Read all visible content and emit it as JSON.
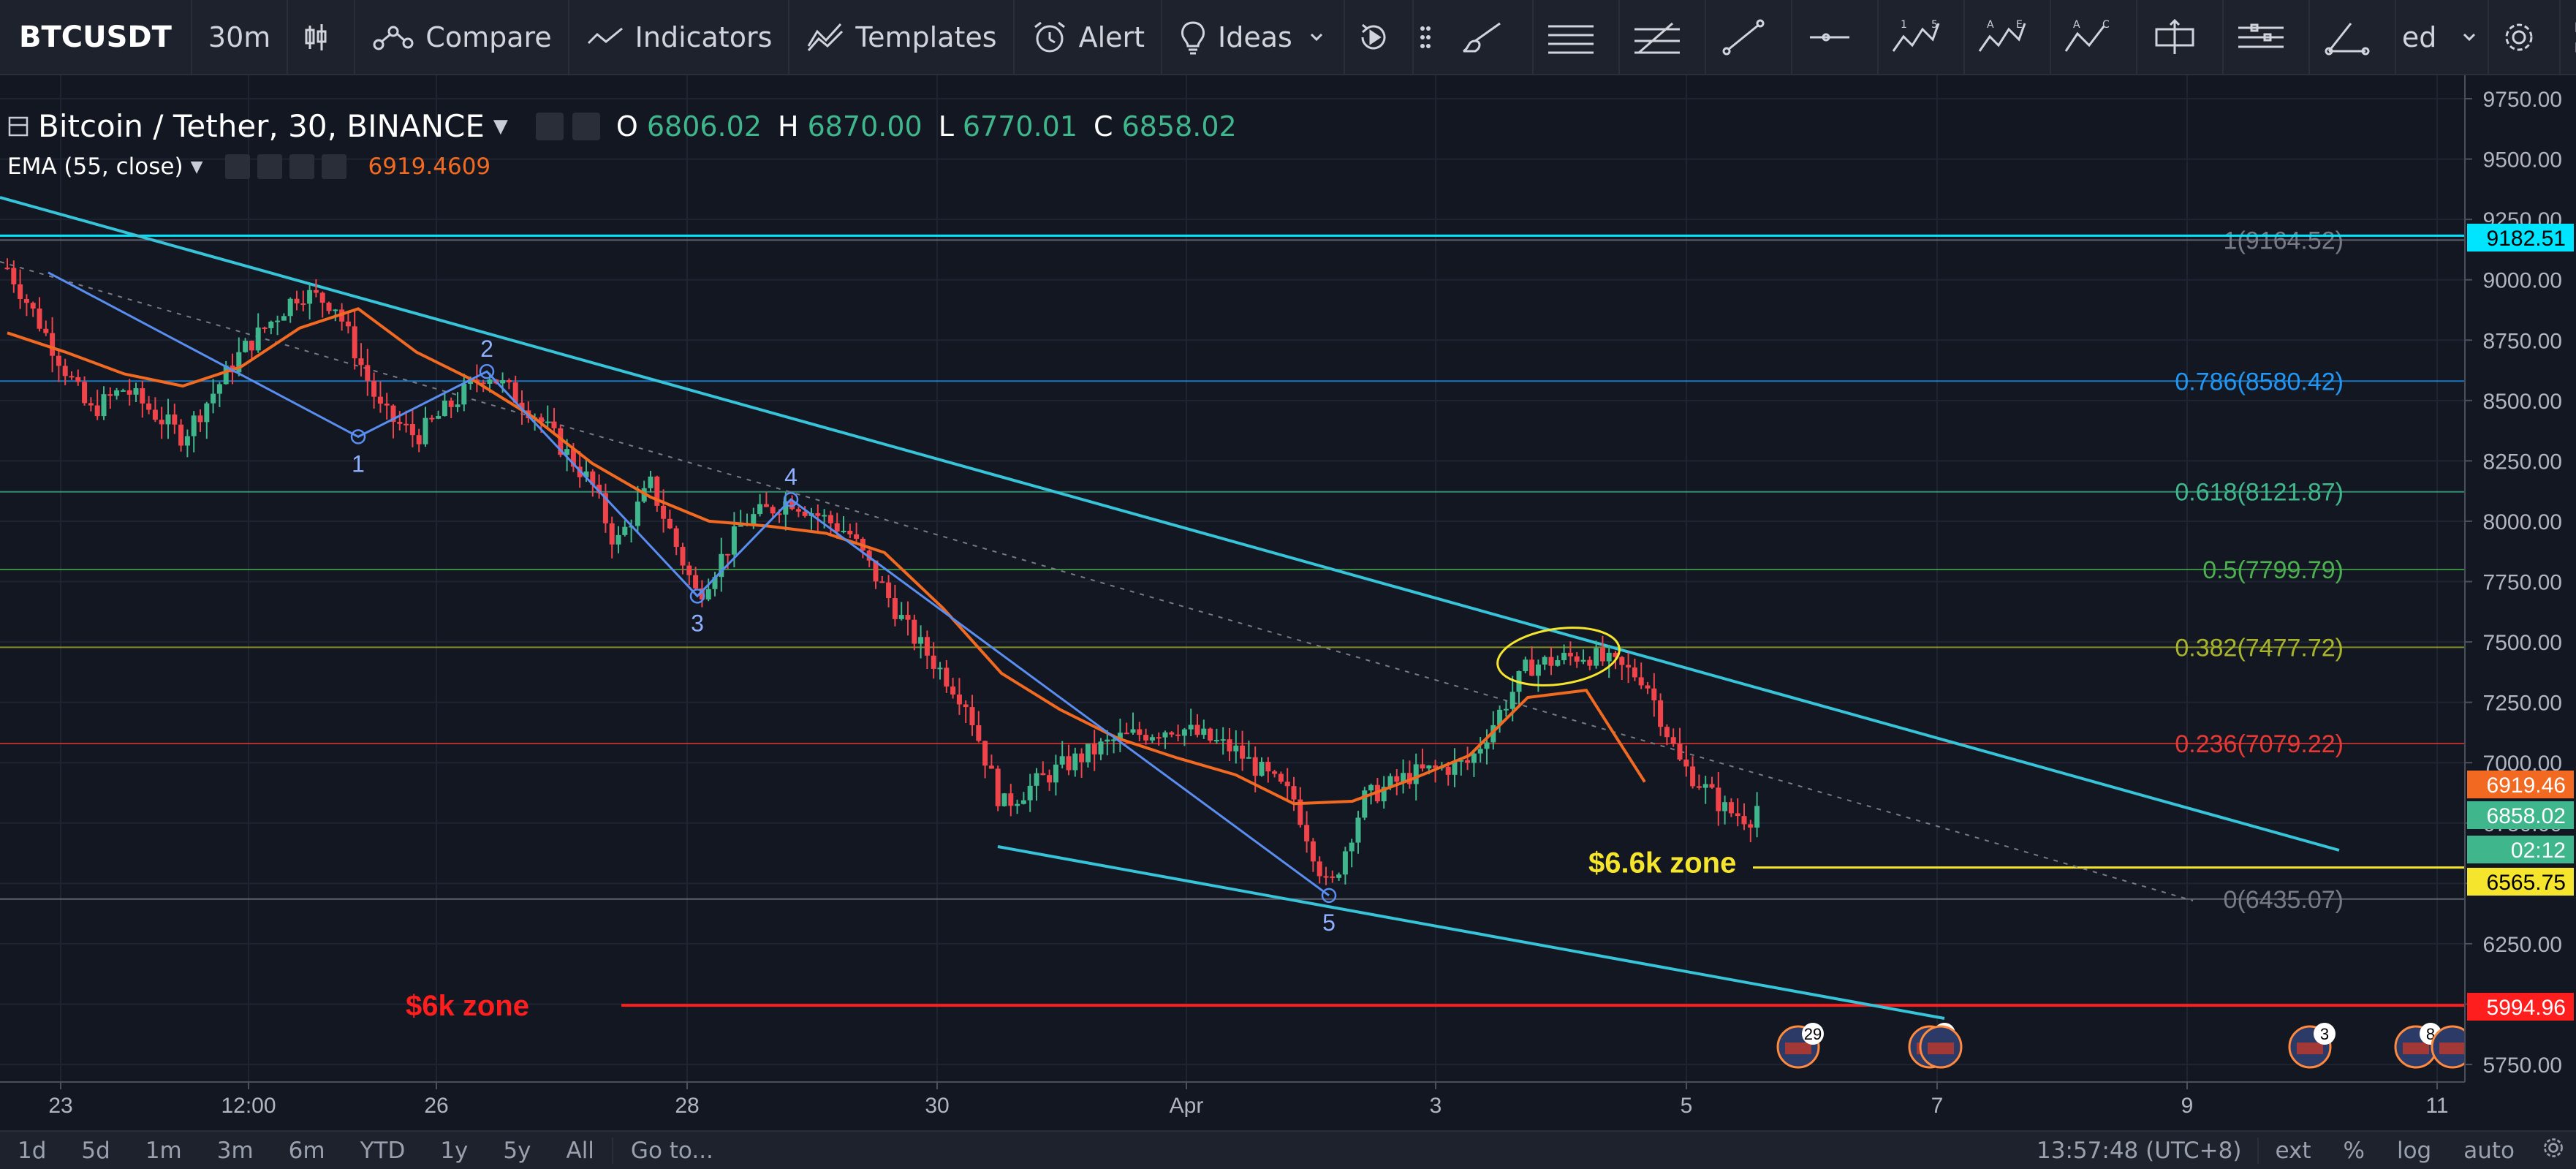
{
  "toolbar": {
    "symbol": "BTCUSDT",
    "interval": "30m",
    "compare": "Compare",
    "indicators": "Indicators",
    "templates": "Templates",
    "alert": "Alert",
    "ideas": "Ideas",
    "cut_label": "ed"
  },
  "legend": {
    "title": "Bitcoin / Tether, 30, BINANCE",
    "o_label": "O",
    "o": "6806.02",
    "h_label": "H",
    "h": "6870.00",
    "l_label": "L",
    "l": "6770.01",
    "c_label": "C",
    "c": "6858.02"
  },
  "indicator": {
    "name": "EMA (55, close)",
    "value": "6919.4609"
  },
  "colors": {
    "background": "#131722",
    "ema": "#f26a21",
    "channel": "#37c3d8",
    "wave": "#5a8df0",
    "up": "#3fb68b",
    "down": "#f0444a",
    "yellow": "#f5e52c",
    "red_zone": "#ff1e1e"
  },
  "price_axis": {
    "ticks": [
      "9750.00",
      "9500.00",
      "9250.00",
      "9000.00",
      "8750.00",
      "8500.00",
      "8250.00",
      "8000.00",
      "7750.00",
      "7500.00",
      "7250.00",
      "7000.00",
      "6750.00",
      "6500.00",
      "6250.00",
      "6000.00",
      "5750.00"
    ],
    "tags": [
      {
        "text": "9182.51",
        "bg": "#00e5ff",
        "fg": "#000000"
      },
      {
        "text": "6919.46",
        "bg": "#f26a21",
        "fg": "#ffffff"
      },
      {
        "text": "6858.02",
        "bg": "#3fb68b",
        "fg": "#ffffff"
      },
      {
        "text": "02:12",
        "bg": "#3fb68b",
        "fg": "#ffffff"
      },
      {
        "text": "6565.75",
        "bg": "#f5e52c",
        "fg": "#000000"
      },
      {
        "text": "5994.96",
        "bg": "#ff1e1e",
        "fg": "#ffffff"
      }
    ]
  },
  "time_axis": {
    "ticks": [
      "23",
      "12:00",
      "26",
      "28",
      "30",
      "Apr",
      "3",
      "5",
      "7",
      "9",
      "11"
    ]
  },
  "chart_data": {
    "type": "candlestick",
    "symbol": "Bitcoin / Tether",
    "interval": "30",
    "exchange": "BINANCE",
    "ylim": [
      5700,
      9800
    ],
    "series": [
      {
        "name": "EMA (55, close)",
        "x": [
          22.0,
          22.5,
          23.0,
          23.5,
          24.0,
          24.5,
          25.0,
          25.5,
          26.0,
          26.5,
          27.0,
          27.5,
          28.0,
          28.5,
          29.0,
          29.5,
          30.0,
          30.5,
          31.0,
          31.5,
          32.0,
          32.5,
          33.0,
          33.5,
          34.0,
          34.5,
          35.0,
          35.5,
          36.0
        ],
        "values": [
          8780,
          8700,
          8610,
          8560,
          8640,
          8800,
          8880,
          8700,
          8580,
          8430,
          8240,
          8100,
          8000,
          7980,
          7950,
          7870,
          7640,
          7370,
          7220,
          7100,
          7020,
          6950,
          6830,
          6840,
          6930,
          7030,
          7270,
          7300,
          6920
        ]
      }
    ],
    "ohlc_sample": [
      {
        "x": 22.0,
        "close": 9050
      },
      {
        "x": 22.3,
        "close": 8800
      },
      {
        "x": 22.7,
        "close": 8450
      },
      {
        "x": 23.0,
        "close": 8550
      },
      {
        "x": 23.5,
        "close": 8350
      },
      {
        "x": 24.0,
        "close": 8700
      },
      {
        "x": 24.5,
        "close": 8950
      },
      {
        "x": 24.8,
        "close": 8900
      },
      {
        "x": 25.2,
        "close": 8450
      },
      {
        "x": 25.5,
        "close": 8350
      },
      {
        "x": 26.1,
        "close": 8620
      },
      {
        "x": 26.5,
        "close": 8450
      },
      {
        "x": 27.0,
        "close": 8150
      },
      {
        "x": 27.2,
        "close": 7900
      },
      {
        "x": 27.5,
        "close": 8150
      },
      {
        "x": 27.9,
        "close": 7690
      },
      {
        "x": 28.3,
        "close": 8000
      },
      {
        "x": 28.7,
        "close": 8090
      },
      {
        "x": 29.2,
        "close": 7950
      },
      {
        "x": 29.7,
        "close": 7550
      },
      {
        "x": 30.2,
        "close": 7250
      },
      {
        "x": 30.5,
        "close": 6820
      },
      {
        "x": 31.0,
        "close": 6980
      },
      {
        "x": 31.5,
        "close": 7100
      },
      {
        "x": 32.0,
        "close": 7150
      },
      {
        "x": 32.5,
        "close": 7050
      },
      {
        "x": 33.0,
        "close": 6850
      },
      {
        "x": 33.3,
        "close": 6460
      },
      {
        "x": 33.6,
        "close": 6850
      },
      {
        "x": 34.0,
        "close": 6950
      },
      {
        "x": 34.5,
        "close": 7000
      },
      {
        "x": 35.0,
        "close": 7400
      },
      {
        "x": 35.5,
        "close": 7450
      },
      {
        "x": 36.0,
        "close": 7350
      },
      {
        "x": 36.3,
        "close": 7000
      },
      {
        "x": 36.7,
        "close": 6800
      },
      {
        "x": 36.9,
        "close": 6770
      },
      {
        "x": 37.0,
        "close": 6858
      }
    ],
    "last": {
      "open": 6806.02,
      "high": 6870.0,
      "low": 6770.01,
      "close": 6858.02
    },
    "fibonacci": [
      {
        "ratio": "1",
        "price": "9164.52",
        "label": "1(9164.52)",
        "color": "#787b86"
      },
      {
        "ratio": "0.786",
        "price": "8580.42",
        "label": "0.786(8580.42)",
        "color": "#2196f3"
      },
      {
        "ratio": "0.618",
        "price": "8121.87",
        "label": "0.618(8121.87)",
        "color": "#3fb68b"
      },
      {
        "ratio": "0.5",
        "price": "7799.79",
        "label": "0.5(7799.79)",
        "color": "#4caf50"
      },
      {
        "ratio": "0.382",
        "price": "7477.72",
        "label": "0.382(7477.72)",
        "color": "#a8b42a"
      },
      {
        "ratio": "0.236",
        "price": "7079.22",
        "label": "0.236(7079.22)",
        "color": "#e53935"
      },
      {
        "ratio": "0",
        "price": "6435.07",
        "label": "0(6435.07)",
        "color": "#787b86"
      }
    ],
    "wave_points": [
      {
        "label": "1",
        "x": 25.0,
        "price": 8350
      },
      {
        "label": "2",
        "x": 26.1,
        "price": 8620
      },
      {
        "label": "3",
        "x": 27.9,
        "price": 7690
      },
      {
        "label": "4",
        "x": 28.7,
        "price": 8090
      },
      {
        "label": "5",
        "x": 33.3,
        "price": 6450
      }
    ],
    "annotations": [
      {
        "text": "$6.6k zone",
        "price": 6565.75,
        "color": "#f5e52c"
      },
      {
        "text": "$6k zone",
        "price": 5994.96,
        "color": "#ff1e1e"
      }
    ],
    "events": [
      {
        "label": "29"
      },
      {
        "label": "10"
      },
      {
        "label": "3"
      },
      {
        "label": "8"
      }
    ]
  },
  "ranges": [
    "1d",
    "5d",
    "1m",
    "3m",
    "6m",
    "YTD",
    "1y",
    "5y",
    "All"
  ],
  "goto": "Go to...",
  "status": {
    "time": "13:57:48 (UTC+8)",
    "ext": "ext",
    "percent": "%",
    "log": "log",
    "auto": "auto"
  }
}
